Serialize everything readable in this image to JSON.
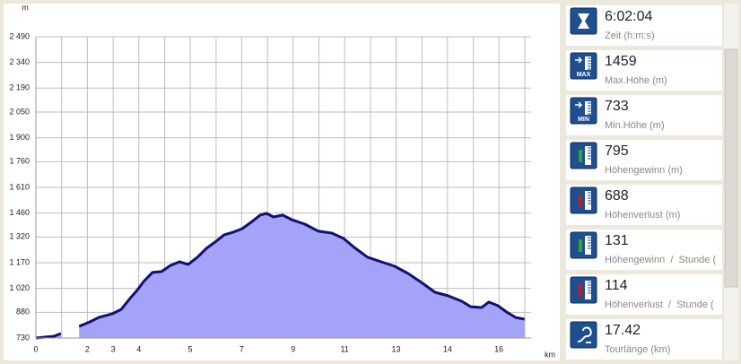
{
  "chart_data": {
    "type": "area",
    "y_unit": "m",
    "x_unit": "km",
    "x": [
      0,
      0.32,
      0.63,
      0.88,
      null,
      1.52,
      1.89,
      2.21,
      2.68,
      3.0,
      3.31,
      3.56,
      3.79,
      4.1,
      4.42,
      4.73,
      5.05,
      5.36,
      5.68,
      6.0,
      6.31,
      6.62,
      6.94,
      7.26,
      7.57,
      7.89,
      8.11,
      8.36,
      8.68,
      8.99,
      9.46,
      9.94,
      10.41,
      10.82,
      11.2,
      11.67,
      12.15,
      12.62,
      13.09,
      13.56,
      14.04,
      14.51,
      14.98,
      15.3,
      15.68,
      15.93,
      16.25,
      16.56,
      16.88,
      17.19
    ],
    "values": [
      730,
      735,
      740,
      756,
      null,
      798,
      824,
      850,
      871,
      897,
      961,
      1008,
      1060,
      1113,
      1118,
      1154,
      1175,
      1160,
      1202,
      1254,
      1291,
      1333,
      1348,
      1369,
      1406,
      1448,
      1458,
      1437,
      1448,
      1422,
      1395,
      1354,
      1343,
      1312,
      1259,
      1202,
      1175,
      1149,
      1107,
      1055,
      997,
      976,
      945,
      913,
      908,
      940,
      919,
      882,
      850,
      840
    ],
    "color": "#a3a3f7",
    "line_color": "#12126e",
    "xlim": [
      0,
      17.42
    ],
    "ylim": [
      730,
      2490
    ],
    "xticks": [
      {
        "value": 0,
        "label": "0"
      },
      {
        "value": 1.81,
        "label": "2"
      },
      {
        "value": 2.72,
        "label": "3"
      },
      {
        "value": 3.62,
        "label": "4"
      },
      {
        "value": 5.43,
        "label": "5"
      },
      {
        "value": 7.24,
        "label": "7"
      },
      {
        "value": 9.05,
        "label": "9"
      },
      {
        "value": 10.86,
        "label": "11"
      },
      {
        "value": 12.67,
        "label": "13"
      },
      {
        "value": 14.48,
        "label": "14"
      },
      {
        "value": 16.29,
        "label": "16"
      }
    ],
    "xgrid": [
      0,
      0.905,
      1.81,
      2.72,
      3.62,
      4.53,
      5.43,
      6.34,
      7.24,
      8.15,
      9.05,
      9.96,
      10.86,
      11.77,
      12.67,
      13.58,
      14.48,
      15.39,
      16.29,
      17.2
    ],
    "yticks": [
      730,
      880,
      {
        "value": 1020,
        "label": "1 020"
      },
      {
        "value": 1170,
        "label": "1 170"
      },
      {
        "value": 1320,
        "label": "1 320"
      },
      {
        "value": 1460,
        "label": "1 460"
      },
      {
        "value": 1610,
        "label": "1 610"
      },
      {
        "value": 1760,
        "label": "1 760"
      },
      {
        "value": 1900,
        "label": "1 900"
      },
      {
        "value": 2050,
        "label": "2 050"
      },
      {
        "value": 2190,
        "label": "2 190"
      },
      {
        "value": 2340,
        "label": "2 340"
      },
      {
        "value": 2490,
        "label": "2 490"
      }
    ],
    "grid": true
  },
  "stats": [
    {
      "value": "6:02:04",
      "label": "Zeit (h:m:s)",
      "icon_text": null,
      "arrow_color": null
    },
    {
      "value": "1459",
      "label": "Max.Höhe (m)",
      "icon_text": "MAX",
      "arrow_color": null
    },
    {
      "value": "733",
      "label": "Min.Höhe (m)",
      "icon_text": "MIN",
      "arrow_color": null
    },
    {
      "value": "795",
      "label": "Höhengewinn (m)",
      "icon_text": null,
      "arrow_color": "#2ea82e"
    },
    {
      "value": "688",
      "label": "Höhenverlust (m)",
      "icon_text": null,
      "arrow_color": "#d01818"
    },
    {
      "value": "131",
      "label": "Höhengewinn  /  Stunde (",
      "icon_text": null,
      "arrow_color": "#2ea82e"
    },
    {
      "value": "114",
      "label": "Höhenverlust  /  Stunde (",
      "icon_text": null,
      "arrow_color": "#d01818"
    },
    {
      "value": "17.42",
      "label": "Tourlänge (km)",
      "icon_text": null,
      "arrow_color": null
    }
  ]
}
